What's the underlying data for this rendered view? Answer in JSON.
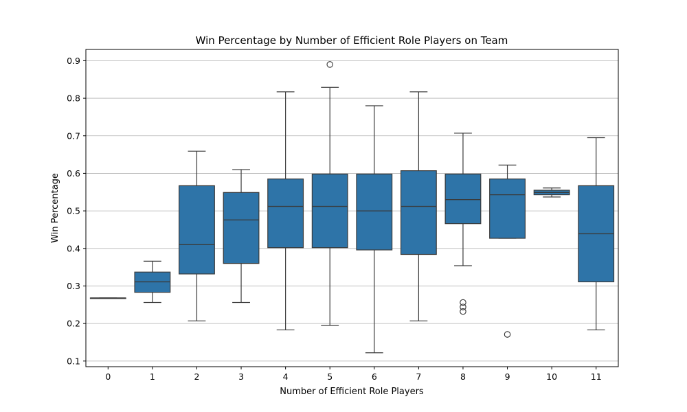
{
  "chart_data": {
    "type": "box",
    "title": "Win Percentage by Number of Efficient Role Players on Team",
    "xlabel": "Number of Efficient Role Players",
    "ylabel": "Win Percentage",
    "ylim": [
      0.085,
      0.93
    ],
    "yticks": [
      0.1,
      0.2,
      0.3,
      0.4,
      0.5,
      0.6,
      0.7,
      0.8,
      0.9
    ],
    "grid": "horizontal",
    "box_color": "#2e74a8",
    "categories": [
      "0",
      "1",
      "2",
      "3",
      "4",
      "5",
      "6",
      "7",
      "8",
      "9",
      "10",
      "11"
    ],
    "boxes": [
      {
        "category": "0",
        "whisker_low": 0.268,
        "q1": 0.268,
        "median": 0.268,
        "q3": 0.268,
        "whisker_high": 0.268,
        "outliers": []
      },
      {
        "category": "1",
        "whisker_low": 0.256,
        "q1": 0.283,
        "median": 0.311,
        "q3": 0.337,
        "whisker_high": 0.366,
        "outliers": []
      },
      {
        "category": "2",
        "whisker_low": 0.207,
        "q1": 0.332,
        "median": 0.41,
        "q3": 0.567,
        "whisker_high": 0.659,
        "outliers": []
      },
      {
        "category": "3",
        "whisker_low": 0.256,
        "q1": 0.36,
        "median": 0.476,
        "q3": 0.549,
        "whisker_high": 0.61,
        "outliers": []
      },
      {
        "category": "4",
        "whisker_low": 0.183,
        "q1": 0.402,
        "median": 0.512,
        "q3": 0.585,
        "whisker_high": 0.817,
        "outliers": []
      },
      {
        "category": "5",
        "whisker_low": 0.195,
        "q1": 0.402,
        "median": 0.512,
        "q3": 0.598,
        "whisker_high": 0.829,
        "outliers": [
          0.89
        ]
      },
      {
        "category": "6",
        "whisker_low": 0.122,
        "q1": 0.396,
        "median": 0.5,
        "q3": 0.598,
        "whisker_high": 0.78,
        "outliers": []
      },
      {
        "category": "7",
        "whisker_low": 0.207,
        "q1": 0.384,
        "median": 0.512,
        "q3": 0.607,
        "whisker_high": 0.817,
        "outliers": []
      },
      {
        "category": "8",
        "whisker_low": 0.354,
        "q1": 0.466,
        "median": 0.53,
        "q3": 0.598,
        "whisker_high": 0.707,
        "outliers": [
          0.256,
          0.244,
          0.232
        ]
      },
      {
        "category": "9",
        "whisker_low": 0.427,
        "q1": 0.427,
        "median": 0.543,
        "q3": 0.585,
        "whisker_high": 0.622,
        "outliers": [
          0.171
        ]
      },
      {
        "category": "10",
        "whisker_low": 0.537,
        "q1": 0.543,
        "median": 0.549,
        "q3": 0.555,
        "whisker_high": 0.561,
        "outliers": []
      },
      {
        "category": "11",
        "whisker_low": 0.183,
        "q1": 0.311,
        "median": 0.439,
        "q3": 0.567,
        "whisker_high": 0.695,
        "outliers": []
      }
    ]
  }
}
